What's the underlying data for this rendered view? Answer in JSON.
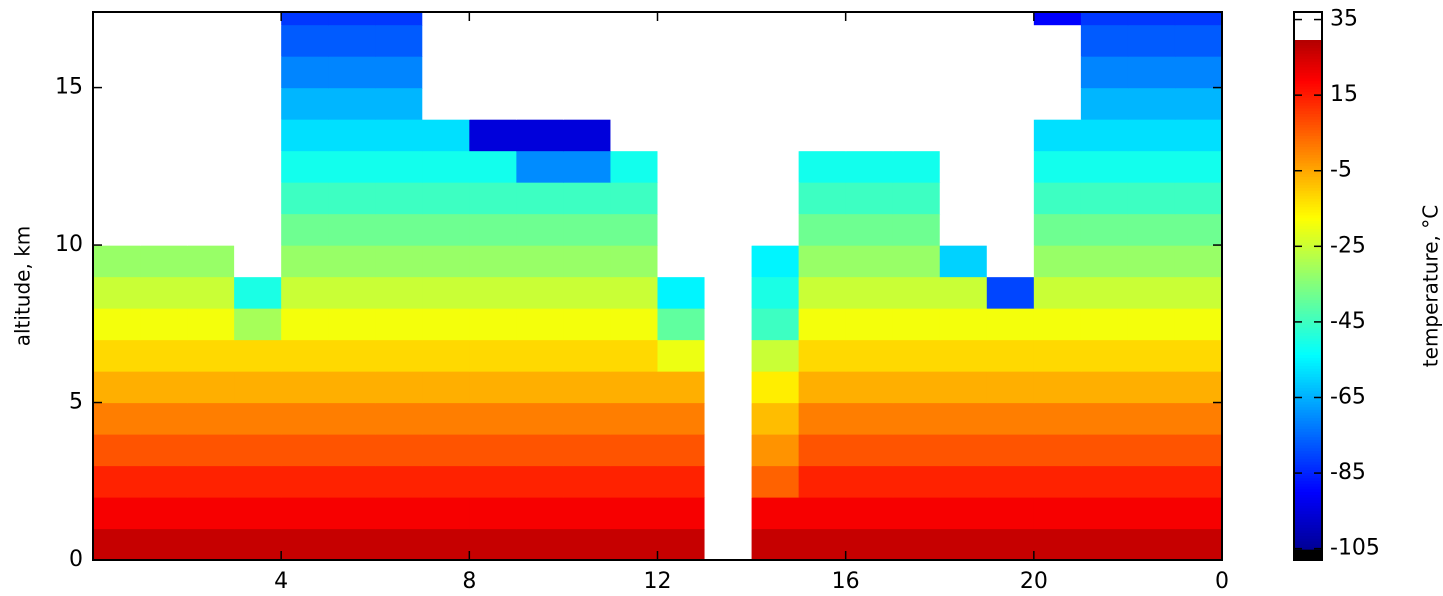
{
  "chart_data": {
    "type": "heatmap",
    "x_label": null,
    "y_label": "altitude, km",
    "colorbar_label": "temperature, °C",
    "colormap": "jet",
    "x_bins": [
      0,
      1,
      2,
      3,
      4,
      5,
      6,
      7,
      8,
      9,
      10,
      11,
      12,
      13,
      14,
      15,
      16,
      17,
      18,
      19,
      20,
      21,
      22,
      23,
      24
    ],
    "y_bins": [
      0,
      1,
      2,
      3,
      4,
      5,
      6,
      7,
      8,
      9,
      10,
      11,
      12,
      13,
      14,
      15,
      16,
      17,
      17.4
    ],
    "xlim": [
      0,
      24
    ],
    "ylim": [
      0,
      17.4
    ],
    "clim": [
      -108,
      37
    ],
    "xticks": [
      4,
      8,
      12,
      16,
      20,
      {
        "value": 24,
        "label": "0"
      }
    ],
    "yticks": [
      0,
      5,
      10,
      15
    ],
    "cticks": [
      35,
      15,
      -5,
      -25,
      -45,
      -65,
      -85,
      -105
    ],
    "z": [
      [
        27,
        27,
        27,
        27,
        27,
        27,
        27,
        27,
        27,
        27,
        27,
        27,
        27,
        40,
        27,
        27,
        27,
        27,
        27,
        27,
        27,
        27,
        27,
        27
      ],
      [
        20,
        20,
        20,
        20,
        20,
        20,
        20,
        20,
        20,
        20,
        20,
        20,
        20,
        40,
        20,
        20,
        20,
        20,
        20,
        20,
        20,
        20,
        20,
        20
      ],
      [
        14,
        14,
        14,
        14,
        14,
        14,
        14,
        14,
        14,
        14,
        14,
        14,
        14,
        40,
        5,
        14,
        14,
        14,
        14,
        14,
        14,
        14,
        14,
        14
      ],
      [
        7,
        7,
        7,
        7,
        7,
        7,
        7,
        7,
        7,
        7,
        7,
        7,
        7,
        40,
        -2,
        7,
        7,
        7,
        7,
        7,
        7,
        7,
        7,
        7
      ],
      [
        1,
        1,
        1,
        1,
        1,
        1,
        1,
        1,
        1,
        1,
        1,
        1,
        1,
        40,
        -8,
        1,
        1,
        1,
        1,
        1,
        1,
        1,
        1,
        1
      ],
      [
        -6,
        -6,
        -6,
        -6,
        -6,
        -6,
        -6,
        -6,
        -6,
        -6,
        -6,
        -6,
        -6,
        40,
        -15,
        -6,
        -6,
        -6,
        -6,
        -6,
        -6,
        -6,
        -6,
        -6
      ],
      [
        -12,
        -12,
        -12,
        -12,
        -12,
        -12,
        -12,
        -12,
        -12,
        -12,
        -12,
        -12,
        -20,
        40,
        -25,
        -12,
        -12,
        -12,
        -12,
        -12,
        -12,
        -12,
        -12,
        -12
      ],
      [
        -19,
        -19,
        -19,
        -30,
        -19,
        -19,
        -19,
        -19,
        -19,
        -19,
        -19,
        -19,
        -40,
        40,
        -45,
        -19,
        -19,
        -19,
        -19,
        -19,
        -19,
        -19,
        -19,
        -19
      ],
      [
        -25,
        -25,
        -25,
        -50,
        -25,
        -25,
        -25,
        -25,
        -25,
        -25,
        -25,
        -25,
        -55,
        40,
        -50,
        -25,
        -25,
        -25,
        -25,
        -80,
        -25,
        -25,
        -25,
        -25
      ],
      [
        -32,
        -32,
        -32,
        40,
        -32,
        -32,
        -32,
        -32,
        -32,
        -32,
        -32,
        -32,
        40,
        40,
        -55,
        -32,
        -32,
        -32,
        -60,
        40,
        -32,
        -32,
        -32,
        -32
      ],
      [
        40,
        40,
        40,
        40,
        -38,
        -38,
        -38,
        -38,
        -38,
        -38,
        -38,
        -38,
        40,
        40,
        40,
        -38,
        -38,
        -38,
        40,
        40,
        -38,
        -38,
        -38,
        -38
      ],
      [
        40,
        40,
        40,
        40,
        -45,
        -45,
        -45,
        -45,
        -45,
        -45,
        -45,
        -45,
        40,
        40,
        40,
        -45,
        -45,
        -45,
        40,
        40,
        -45,
        -45,
        -45,
        -45
      ],
      [
        40,
        40,
        40,
        40,
        -51,
        -51,
        -51,
        -51,
        -51,
        -70,
        -70,
        -51,
        40,
        40,
        40,
        -51,
        -51,
        -51,
        40,
        40,
        -51,
        -51,
        -51,
        -51
      ],
      [
        40,
        40,
        40,
        40,
        -58,
        -58,
        -58,
        -58,
        -95,
        -95,
        -95,
        40,
        40,
        40,
        40,
        40,
        40,
        40,
        40,
        40,
        -58,
        -58,
        -58,
        -58
      ],
      [
        40,
        40,
        40,
        40,
        -64,
        -64,
        -64,
        40,
        40,
        40,
        40,
        40,
        40,
        40,
        40,
        40,
        40,
        40,
        40,
        40,
        40,
        -64,
        -64,
        -64
      ],
      [
        40,
        40,
        40,
        40,
        -71,
        -71,
        -71,
        40,
        40,
        40,
        40,
        40,
        40,
        40,
        40,
        40,
        40,
        40,
        40,
        40,
        40,
        -71,
        -71,
        -71
      ],
      [
        40,
        40,
        40,
        40,
        -77,
        -77,
        -77,
        40,
        40,
        40,
        40,
        40,
        40,
        40,
        40,
        40,
        40,
        40,
        40,
        40,
        40,
        -77,
        -77,
        -77
      ],
      [
        40,
        40,
        40,
        40,
        -82,
        -82,
        -82,
        40,
        40,
        40,
        40,
        40,
        40,
        40,
        40,
        40,
        40,
        40,
        40,
        40,
        -90,
        -82,
        -82,
        -82
      ]
    ]
  }
}
